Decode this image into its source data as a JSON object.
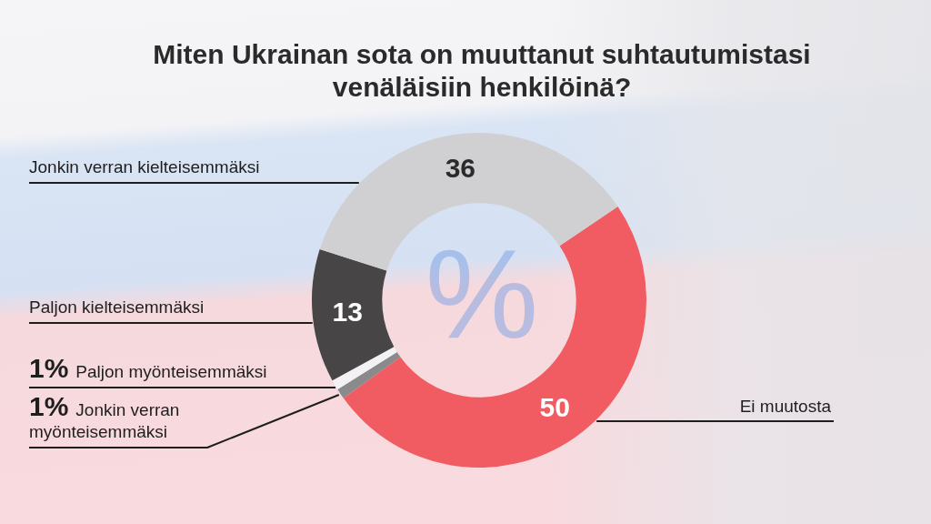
{
  "chart_data": {
    "type": "donut",
    "title": "Miten Ukrainan sota on muuttanut suhtautumistasi venäläisiin henkilöinä?",
    "categories": [
      "Ei muutosta",
      "Jonkin verran myönteisemmäksi",
      "Paljon myönteisemmäksi",
      "Paljon kielteisemmäksi",
      "Jonkin verran kielteisemmäksi"
    ],
    "values": [
      50,
      1,
      1,
      13,
      36
    ],
    "colors": [
      "#f05c62",
      "#8a8a8c",
      "#f2f2f4",
      "#474546",
      "#d0d0d2"
    ],
    "value_labels": [
      "50",
      "1%",
      "1%",
      "13",
      "36"
    ],
    "annotations": [
      "%"
    ],
    "legend": false
  }
}
